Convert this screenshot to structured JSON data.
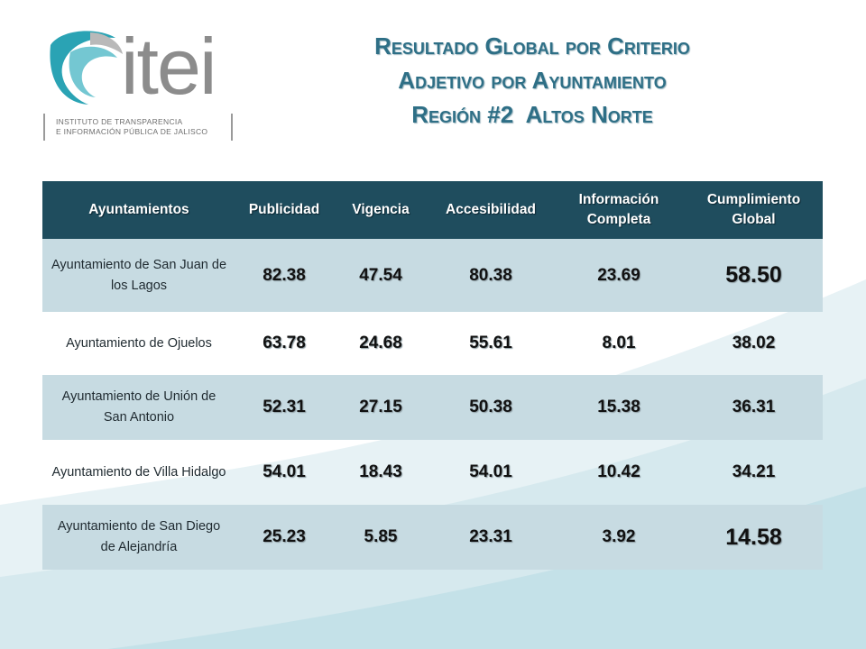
{
  "colors": {
    "header_bg": "#1f4d5e",
    "row_shaded": "#c7dbe2",
    "title": "#2e6f86",
    "logo_gray": "#8c8c8c",
    "logo_teal": "#2aa3b4"
  },
  "logo": {
    "wordmark": "itei",
    "sub_line1": "INSTITUTO DE TRANSPARENCIA",
    "sub_line2": "E INFORMACIÓN PÚBLICA DE JALISCO",
    "icon": "itei-swirl-logo"
  },
  "title": {
    "line1": "Resultado Global por Criterio",
    "line2": "Adjetivo por Ayuntamiento",
    "line3": "Región #2  Altos Norte"
  },
  "table": {
    "headers": {
      "c0": "Ayuntamientos",
      "c1": "Publicidad",
      "c2": "Vigencia",
      "c3": "Accesibilidad",
      "c4a": "Información",
      "c4b": "Completa",
      "c5a": "Cumplimiento",
      "c5b": "Global"
    },
    "rows": [
      {
        "name": "Ayuntamiento de San Juan de los Lagos",
        "publicidad": "82.38",
        "vigencia": "47.54",
        "accesibilidad": "80.38",
        "info_completa": "23.69",
        "cumplimiento": "58.50"
      },
      {
        "name": "Ayuntamiento de Ojuelos",
        "publicidad": "63.78",
        "vigencia": "24.68",
        "accesibilidad": "55.61",
        "info_completa": "8.01",
        "cumplimiento": "38.02"
      },
      {
        "name": "Ayuntamiento de Unión de San Antonio",
        "publicidad": "52.31",
        "vigencia": "27.15",
        "accesibilidad": "50.38",
        "info_completa": "15.38",
        "cumplimiento": "36.31"
      },
      {
        "name": "Ayuntamiento de Villa Hidalgo",
        "publicidad": "54.01",
        "vigencia": "18.43",
        "accesibilidad": "54.01",
        "info_completa": "10.42",
        "cumplimiento": "34.21"
      },
      {
        "name": "Ayuntamiento de San Diego de Alejandría",
        "publicidad": "25.23",
        "vigencia": "5.85",
        "accesibilidad": "23.31",
        "info_completa": "3.92",
        "cumplimiento": "14.58"
      }
    ]
  }
}
